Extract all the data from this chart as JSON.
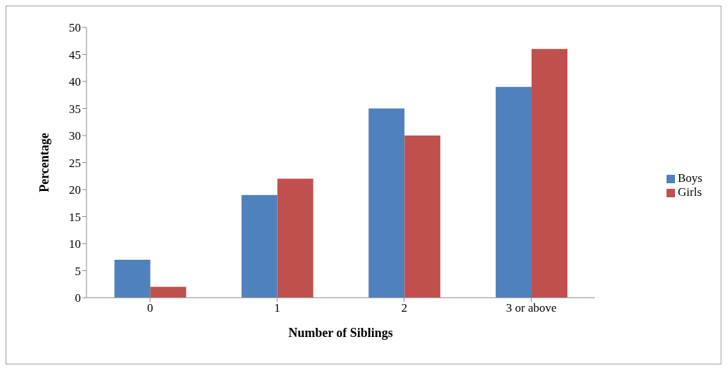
{
  "chart_data": {
    "type": "bar",
    "xlabel": "Number of Siblings",
    "ylabel": "Percentage",
    "categories": [
      "0",
      "1",
      "2",
      "3 or above"
    ],
    "series": [
      {
        "name": "Boys",
        "color": "#4f81bd",
        "values": [
          7,
          19,
          35,
          39
        ]
      },
      {
        "name": "Girls",
        "color": "#c0504d",
        "values": [
          2,
          22,
          30,
          46
        ]
      }
    ],
    "ylim": [
      0,
      50
    ],
    "yticks": [
      0,
      5,
      10,
      15,
      20,
      25,
      30,
      35,
      40,
      45,
      50
    ],
    "grid": false,
    "legend": "right"
  }
}
